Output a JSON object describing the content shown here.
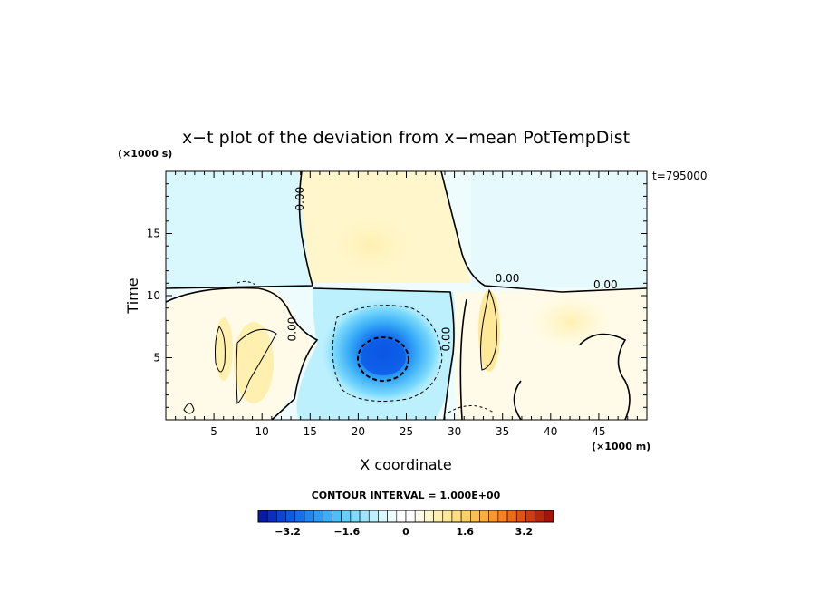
{
  "chart_data": {
    "type": "heatmap",
    "title": "x−t plot of the deviation from x−mean PotTempDist",
    "xlabel": "X coordinate",
    "ylabel": "Time",
    "x_unit": "(×1000 m)",
    "y_unit": "(×1000 s)",
    "annotation": "t=795000",
    "xlim": [
      0,
      50
    ],
    "ylim": [
      0,
      20
    ],
    "x_ticks": [
      "5",
      "10",
      "15",
      "20",
      "25",
      "30",
      "35",
      "40",
      "45"
    ],
    "x_tick_values": [
      5,
      10,
      15,
      20,
      25,
      30,
      35,
      40,
      45
    ],
    "y_ticks": [
      "5",
      "10",
      "15"
    ],
    "y_tick_values": [
      5,
      10,
      15
    ],
    "contour_labels": [
      {
        "text": "0.00",
        "x": 14.3,
        "y": 17.8,
        "angle": -90
      },
      {
        "text": "0.00",
        "x": 13.5,
        "y": 7.3,
        "angle": -90
      },
      {
        "text": "0.00",
        "x": 29.5,
        "y": 6.5,
        "angle": -90
      },
      {
        "text": "0.00",
        "x": 35.5,
        "y": 11.1,
        "angle": 0
      },
      {
        "text": "0.00",
        "x": 45.7,
        "y": 10.6,
        "angle": 0
      }
    ],
    "contour_interval_text": "CONTOUR INTERVAL = 1.000E+00",
    "colorbar": {
      "min": -4.0,
      "max": 4.0,
      "tick_labels": [
        "−3.2",
        "−1.6",
        "0",
        "1.6",
        "3.2"
      ],
      "tick_values": [
        -3.2,
        -1.6,
        0,
        1.6,
        3.2
      ],
      "colors": [
        "#0a1aa8",
        "#0a2fc0",
        "#0b45d6",
        "#0c5ae6",
        "#1470ee",
        "#2286f2",
        "#2e9af5",
        "#3aaef8",
        "#4cc0fa",
        "#64d0fb",
        "#80dcfc",
        "#9ee6fc",
        "#bcf0fd",
        "#d8f8fe",
        "#eefcfe",
        "#ffffff",
        "#ffffff",
        "#fffbe8",
        "#fff6cc",
        "#fff0b0",
        "#ffe898",
        "#ffdc80",
        "#ffcf68",
        "#ffbf50",
        "#ffad3c",
        "#ff982c",
        "#f9821e",
        "#ee6a14",
        "#e0520e",
        "#cf3c0a",
        "#bb2606",
        "#a81404"
      ]
    }
  }
}
